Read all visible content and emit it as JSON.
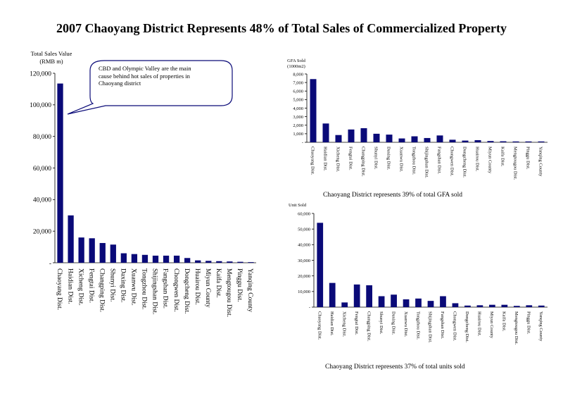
{
  "page": {
    "title": "2007 Chaoyang District Represents 48% of Total Sales of Commercialized Property"
  },
  "colors": {
    "bar": "#0a0a78",
    "axis": "#000000",
    "callout_border": "#0a0a78"
  },
  "chart_data": [
    {
      "id": "sales",
      "type": "bar",
      "ylabel": "Total Sales Value",
      "ylabel2": "(RMB m)",
      "ylim": [
        0,
        120000
      ],
      "ticks": [
        0,
        20000,
        40000,
        60000,
        80000,
        100000,
        120000
      ],
      "tick_labels": [
        "-",
        "20,000",
        "40,000",
        "60,000",
        "80,000",
        "100,000",
        "120,000"
      ],
      "categories": [
        "Chaoyang Dist.",
        "Haidian Dist.",
        "Xicheng Dist.",
        "Fengtai Dist.",
        "Changping Dist.",
        "Shunyi Dist.",
        "Daxing Dist.",
        "Xuanwu Dist.",
        "Tongzhou Dist.",
        "Shijingshan Dist.",
        "Fangshan Dist.",
        "Chongwen Dist.",
        "Dongcheng Dist.",
        "Huairou Dist.",
        "Miyun County",
        "Kaifa Dist.",
        "Mengtougou Dist.",
        "Pinggu Dist.",
        "Yanqing County"
      ],
      "values": [
        113500,
        30000,
        16000,
        15500,
        12500,
        11500,
        6000,
        5500,
        5000,
        4500,
        4500,
        4500,
        3000,
        1500,
        1200,
        1000,
        800,
        600,
        400
      ],
      "annotation": "CBD and Olympic Valley are the main cause behind hot sales of properties in Chaoyang district",
      "grid": false,
      "legend": "none"
    },
    {
      "id": "gfa",
      "type": "bar",
      "ylabel": "GFA Sold",
      "ylabel2": "(1000m2)",
      "ylim": [
        0,
        8000
      ],
      "ticks": [
        0,
        1000,
        2000,
        3000,
        4000,
        5000,
        6000,
        7000,
        8000
      ],
      "tick_labels": [
        "-",
        "1,000",
        "2,000",
        "3,000",
        "4,000",
        "5,000",
        "6,000",
        "7,000",
        "8,000"
      ],
      "categories": [
        "Chaoyang Dist.",
        "Haidian Dist.",
        "Xicheng Dist.",
        "Fengtai Dist.",
        "Changping Dist.",
        "Shunyi Dist.",
        "Daxing Dist.",
        "Xuanwu Dist.",
        "Tongzhou Dist.",
        "Shijingshan Dist.",
        "Fangshan Dist.",
        "Chongwen Dist.",
        "Dongcheng Dist.",
        "Huairou Dist.",
        "Miyun County",
        "Kaifa Dist.",
        "Mengtougou Dist.",
        "Pinggu Dist.",
        "Yanqing County"
      ],
      "values": [
        7400,
        2200,
        850,
        1500,
        1650,
        1000,
        900,
        450,
        700,
        500,
        800,
        300,
        200,
        250,
        150,
        120,
        100,
        100,
        100
      ],
      "caption": "Chaoyang District represents 39% of total GFA sold",
      "grid": false,
      "legend": "none"
    },
    {
      "id": "units",
      "type": "bar",
      "ylabel": "Unit Sold",
      "ylim": [
        0,
        60000
      ],
      "ticks": [
        0,
        10000,
        20000,
        30000,
        40000,
        50000,
        60000
      ],
      "tick_labels": [
        "-",
        "10,000",
        "20,000",
        "30,000",
        "40,000",
        "50,000",
        "60,000"
      ],
      "categories": [
        "Chaoyang Dist.",
        "Haidian Dist.",
        "Xicheng Dist.",
        "Fengtai Dist.",
        "Changping Dist.",
        "Shunyi Dist.",
        "Daxing Dist.",
        "Xuanwu Dist.",
        "Tongzhou Dist.",
        "Shijingshan Dist.",
        "Fangshan Dist.",
        "Chongwen Dist.",
        "Dongcheng Dist.",
        "Huairou Dist.",
        "Miyun County",
        "Kaifa Dist.",
        "Mengtougou Dist.",
        "Pinggu Dist.",
        "Yanqing County"
      ],
      "values": [
        54000,
        15500,
        3000,
        14500,
        14000,
        7000,
        8000,
        5000,
        5500,
        4000,
        7000,
        2500,
        1000,
        1200,
        1500,
        1500,
        800,
        1200,
        1000
      ],
      "caption": "Chaoyang District represents 37% of total units sold",
      "grid": false,
      "legend": "none"
    }
  ]
}
